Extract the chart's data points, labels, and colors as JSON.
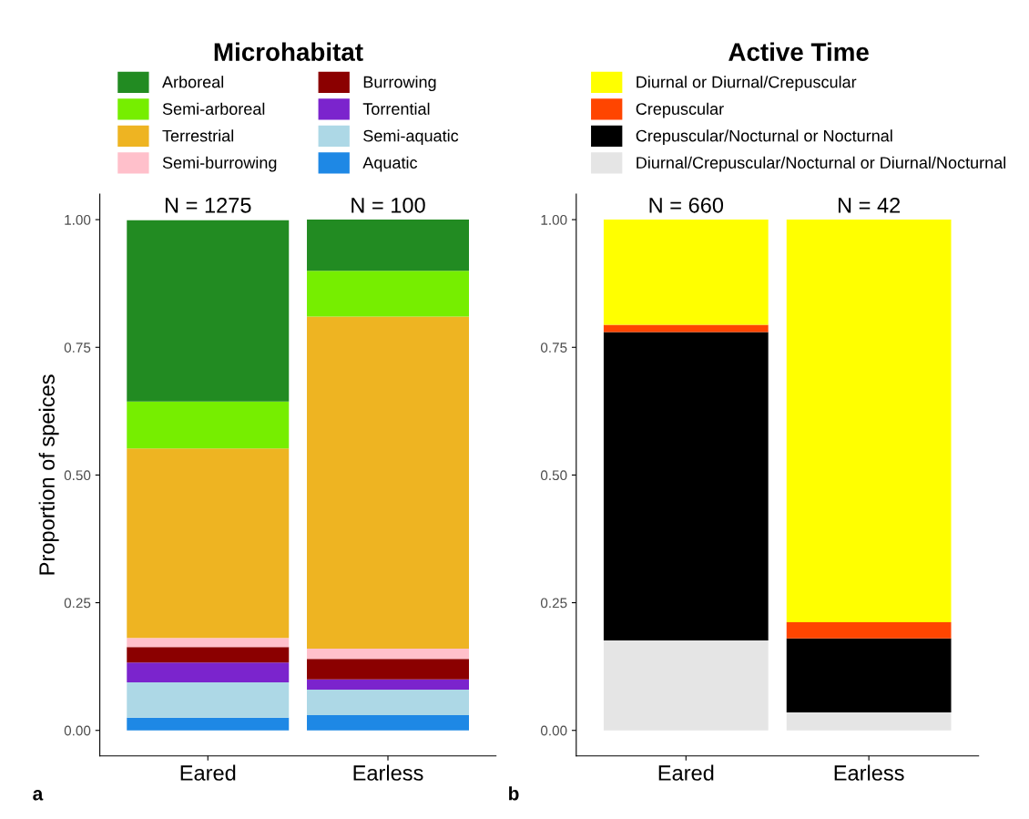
{
  "chart_data": [
    {
      "type": "bar",
      "stacked": true,
      "legend_title": "Microhabitat",
      "legend": "top",
      "ylabel": "Proportion of speices",
      "categories": [
        "Eared",
        "Earless"
      ],
      "ylim": [
        -0.05,
        1.05
      ],
      "yticks": [
        {
          "value": 0,
          "label": "0.00"
        },
        {
          "value": 0.25,
          "label": "0.25"
        },
        {
          "value": 0.5,
          "label": "0.50"
        },
        {
          "value": 0.75,
          "label": "0.75"
        },
        {
          "value": 1,
          "label": "1.00"
        }
      ],
      "grid": false,
      "series": [
        {
          "name": "Aquatic",
          "color": "#1e88e5",
          "values": [
            0.025,
            0.03
          ]
        },
        {
          "name": "Semi-aquatic",
          "color": "#add8e6",
          "values": [
            0.069,
            0.05
          ]
        },
        {
          "name": "Torrential",
          "color": "#7b24cd",
          "values": [
            0.039,
            0.02
          ]
        },
        {
          "name": "Burrowing",
          "color": "#8b0000",
          "values": [
            0.03,
            0.04
          ]
        },
        {
          "name": "Semi-burrowing",
          "color": "#ffc0cb",
          "values": [
            0.018,
            0.02
          ]
        },
        {
          "name": "Terrestrial",
          "color": "#eeb422",
          "values": [
            0.371,
            0.65
          ]
        },
        {
          "name": "Semi-arboreal",
          "color": "#76ee00",
          "values": [
            0.092,
            0.09
          ]
        },
        {
          "name": "Arboreal",
          "color": "#228b22",
          "values": [
            0.355,
            0.1
          ]
        }
      ],
      "annotations": [
        "a",
        {
          "text": "N = 1275",
          "x": "Eared",
          "y": 1
        },
        {
          "text": "N = 100",
          "x": "Earless",
          "y": 1
        }
      ]
    },
    {
      "type": "bar",
      "stacked": true,
      "legend_title": "Active Time",
      "legend": "top",
      "categories": [
        "Eared",
        "Earless"
      ],
      "ylim": [
        -0.05,
        1.05
      ],
      "yticks": [
        {
          "value": 0,
          "label": "0.00"
        },
        {
          "value": 0.25,
          "label": "0.25"
        },
        {
          "value": 0.5,
          "label": "0.50"
        },
        {
          "value": 0.75,
          "label": "0.75"
        },
        {
          "value": 1,
          "label": "1.00"
        }
      ],
      "grid": false,
      "series": [
        {
          "name": "Diurnal/Crepuscular/Nocturnal or Diurnal/Nocturnal",
          "color": "#e5e5e5",
          "values": [
            0.176,
            0.035
          ]
        },
        {
          "name": "Crepuscular/Nocturnal or Nocturnal",
          "color": "#000000",
          "values": [
            0.604,
            0.145
          ]
        },
        {
          "name": "Crepuscular",
          "color": "#ff4500",
          "values": [
            0.014,
            0.032
          ]
        },
        {
          "name": "Diurnal or Diurnal/Crepuscular",
          "color": "#ffff00",
          "values": [
            0.206,
            0.788
          ]
        }
      ],
      "annotations": [
        "b",
        {
          "text": "N = 660",
          "x": "Eared",
          "y": 1
        },
        {
          "text": "N = 42",
          "x": "Earless",
          "y": 1
        }
      ]
    }
  ]
}
